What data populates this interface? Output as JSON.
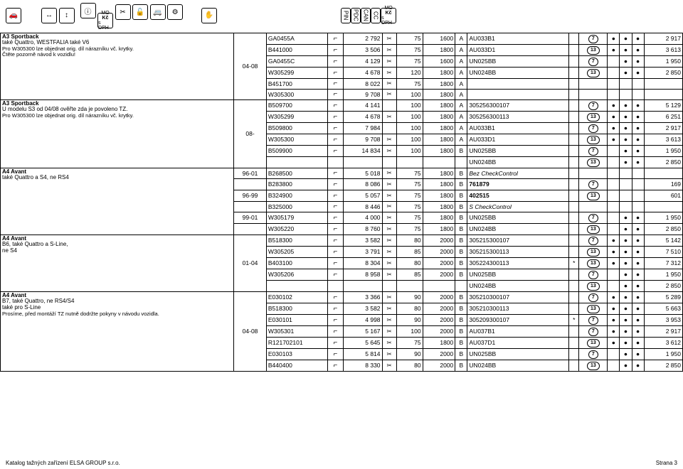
{
  "header_icons_left": [
    "🚗"
  ],
  "header_icons_g2": [
    "↔",
    "↕"
  ],
  "header_icons_g3": [
    "ⓘ",
    "Kč",
    "✂",
    "🔓",
    "🚐",
    "⚙"
  ],
  "header_icons_g4": [
    "✋"
  ],
  "header_icons_g5": [
    "PIN",
    "PDC",
    "CAN",
    "CC",
    "Kč"
  ],
  "groups": [
    {
      "descs": [
        {
          "text": "A3 Sportback",
          "bold": true
        },
        {
          "text": "také Quattro, WESTFALIA také V6"
        },
        {
          "text": "Pro W305300 lze objednat orig. díl nárazníku vč. krytky.",
          "small": true
        },
        {
          "text": "Čtěte pozorně návod k vozidlu!",
          "small": true
        }
      ],
      "years": "04-08",
      "rows": [
        {
          "code": "GA0455A",
          "sym": "⌐",
          "num": "2 792",
          "s2": "✂",
          "n2": "75",
          "n3": "1600",
          "ab": "A",
          "ref": "AU033B1",
          "star": "",
          "pin": "7",
          "d1": "●",
          "d2": "●",
          "d3": "●",
          "price": "2 917"
        },
        {
          "code": "B441000",
          "sym": "⌐",
          "num": "3 506",
          "s2": "✂",
          "n2": "75",
          "n3": "1800",
          "ab": "A",
          "ref": "AU033D1",
          "star": "",
          "pin": "13",
          "d1": "●",
          "d2": "●",
          "d3": "●",
          "price": "3 613"
        },
        {
          "code": "GA0455C",
          "sym": "⌐",
          "num": "4 129",
          "s2": "✂",
          "n2": "75",
          "n3": "1600",
          "ab": "A",
          "ref": "UN025BB",
          "star": "",
          "pin": "7",
          "d1": "",
          "d2": "●",
          "d3": "●",
          "price": "1 950"
        },
        {
          "code": "W305299",
          "sym": "⌐",
          "num": "4 678",
          "s2": "✂",
          "n2": "120",
          "n3": "1800",
          "ab": "A",
          "ref": "UN024BB",
          "star": "",
          "pin": "13",
          "d1": "",
          "d2": "●",
          "d3": "●",
          "price": "2 850"
        },
        {
          "code": "B451700",
          "sym": "⌐",
          "num": "8 022",
          "s2": "✂",
          "n2": "75",
          "n3": "1800",
          "ab": "A",
          "ref": "",
          "star": "",
          "pin": "",
          "d1": "",
          "d2": "",
          "d3": "",
          "price": ""
        },
        {
          "code": "W305300",
          "sym": "⌐",
          "num": "9 708",
          "s2": "✂",
          "n2": "100",
          "n3": "1800",
          "ab": "A",
          "ref": "",
          "star": "",
          "pin": "",
          "d1": "",
          "d2": "",
          "d3": "",
          "price": ""
        }
      ]
    },
    {
      "descs": [
        {
          "text": "A3 Sportback",
          "bold": true
        },
        {
          "text": "U modelu S3 od 04/08 ověřte zda je povoleno TZ."
        },
        {
          "text": "Pro W305300 lze objednat orig. díl nárazníku vč. krytky.",
          "small": true
        }
      ],
      "years": "08-",
      "rows": [
        {
          "code": "B509700",
          "sym": "⌐",
          "num": "4 141",
          "s2": "",
          "n2": "100",
          "n3": "1800",
          "ab": "A",
          "ref": "305256300107",
          "star": "",
          "pin": "7",
          "d1": "●",
          "d2": "●",
          "d3": "●",
          "price": "5 129"
        },
        {
          "code": "W305299",
          "sym": "⌐",
          "num": "4 678",
          "s2": "✂",
          "n2": "100",
          "n3": "1800",
          "ab": "A",
          "ref": "305256300113",
          "star": "",
          "pin": "13",
          "d1": "●",
          "d2": "●",
          "d3": "●",
          "price": "6 251"
        },
        {
          "code": "B509800",
          "sym": "⌐",
          "num": "7 984",
          "s2": "",
          "n2": "100",
          "n3": "1800",
          "ab": "A",
          "ref": "AU033B1",
          "star": "",
          "pin": "7",
          "d1": "●",
          "d2": "●",
          "d3": "●",
          "price": "2 917"
        },
        {
          "code": "W305300",
          "sym": "⌐",
          "num": "9 708",
          "s2": "✂",
          "n2": "100",
          "n3": "1800",
          "ab": "A",
          "ref": "AU033D1",
          "star": "",
          "pin": "13",
          "d1": "●",
          "d2": "●",
          "d3": "●",
          "price": "3 613"
        },
        {
          "code": "B509900",
          "sym": "⌐",
          "num": "14 834",
          "s2": "✂",
          "n2": "100",
          "n3": "1800",
          "ab": "B",
          "ref": "UN025BB",
          "star": "",
          "pin": "7",
          "d1": "",
          "d2": "●",
          "d3": "●",
          "price": "1 950"
        },
        {
          "code": "",
          "sym": "",
          "num": "",
          "s2": "",
          "n2": "",
          "n3": "",
          "ab": "",
          "ref": "UN024BB",
          "star": "",
          "pin": "13",
          "d1": "",
          "d2": "●",
          "d3": "●",
          "price": "2 850"
        }
      ]
    },
    {
      "descs": [
        {
          "text": "A4 Avant",
          "bold": true
        },
        {
          "text": "také Quattro a S4, ne RS4"
        }
      ],
      "years": "96-01",
      "year_overrides": {
        "2": "96-99",
        "4": "99-01"
      },
      "rows": [
        {
          "code": "B268500",
          "sym": "⌐",
          "num": "5 018",
          "s2": "✂",
          "n2": "75",
          "n3": "1800",
          "ab": "B",
          "ref": "Bez CheckControl",
          "refItalic": true,
          "star": "",
          "pin": "",
          "d1": "",
          "d2": "",
          "d3": "",
          "price": ""
        },
        {
          "code": "B283800",
          "sym": "⌐",
          "num": "8 086",
          "s2": "✂",
          "n2": "75",
          "n3": "1800",
          "ab": "B",
          "ref": "761879",
          "refBold": true,
          "star": "",
          "pin": "7",
          "d1": "",
          "d2": "",
          "d3": "",
          "price": "169"
        },
        {
          "code": "B324900",
          "sym": "⌐",
          "num": "5 057",
          "s2": "✂",
          "n2": "75",
          "n3": "1800",
          "ab": "B",
          "ref": "402515",
          "refBold": true,
          "star": "",
          "pin": "13",
          "d1": "",
          "d2": "",
          "d3": "",
          "price": "601"
        },
        {
          "code": "B325000",
          "sym": "⌐",
          "num": "8 446",
          "s2": "✂",
          "n2": "75",
          "n3": "1800",
          "ab": "B",
          "ref": "S CheckControl",
          "refItalic": true,
          "star": "",
          "pin": "",
          "d1": "",
          "d2": "",
          "d3": "",
          "price": ""
        },
        {
          "code": "W305179",
          "sym": "⌐",
          "num": "4 000",
          "s2": "✂",
          "n2": "75",
          "n3": "1800",
          "ab": "B",
          "ref": "UN025BB",
          "star": "",
          "pin": "7",
          "d1": "",
          "d2": "●",
          "d3": "●",
          "price": "1 950"
        },
        {
          "code": "W305220",
          "sym": "⌐",
          "num": "8 760",
          "s2": "✂",
          "n2": "75",
          "n3": "1800",
          "ab": "B",
          "ref": "UN024BB",
          "star": "",
          "pin": "13",
          "d1": "",
          "d2": "●",
          "d3": "●",
          "price": "2 850"
        }
      ]
    },
    {
      "descs": [
        {
          "text": "A4 Avant",
          "bold": true
        },
        {
          "text": "B6, také Quattro a S-Line,"
        },
        {
          "text": "ne S4"
        }
      ],
      "years": "01-04",
      "rows": [
        {
          "code": "B518300",
          "sym": "⌐",
          "num": "3 582",
          "s2": "✂",
          "n2": "80",
          "n3": "2000",
          "ab": "B",
          "ref": "305215300107",
          "star": "",
          "pin": "7",
          "d1": "●",
          "d2": "●",
          "d3": "●",
          "price": "5 142"
        },
        {
          "code": "W305205",
          "sym": "⌐",
          "num": "3 791",
          "s2": "✂",
          "n2": "85",
          "n3": "2000",
          "ab": "B",
          "ref": "305215300113",
          "star": "",
          "pin": "13",
          "d1": "●",
          "d2": "●",
          "d3": "●",
          "price": "7 510"
        },
        {
          "code": "B403100",
          "sym": "⌐",
          "num": "8 304",
          "s2": "✂",
          "n2": "80",
          "n3": "2000",
          "ab": "B",
          "ref": "305224300113",
          "star": "*",
          "pin": "13",
          "d1": "●",
          "d2": "●",
          "d3": "●",
          "price": "7 312"
        },
        {
          "code": "W305206",
          "sym": "⌐",
          "num": "8 958",
          "s2": "✂",
          "n2": "85",
          "n3": "2000",
          "ab": "B",
          "ref": "UN025BB",
          "star": "",
          "pin": "7",
          "d1": "",
          "d2": "●",
          "d3": "●",
          "price": "1 950"
        },
        {
          "code": "",
          "sym": "",
          "num": "",
          "s2": "",
          "n2": "",
          "n3": "",
          "ab": "",
          "ref": "UN024BB",
          "star": "",
          "pin": "13",
          "d1": "",
          "d2": "●",
          "d3": "●",
          "price": "2 850"
        }
      ]
    },
    {
      "descs": [
        {
          "text": "A4 Avant",
          "bold": true
        },
        {
          "text": "B7, také Quattro, ne RS4/S4"
        },
        {
          "text": "také pro S-Line"
        },
        {
          "text": "Prosíme, před montáží TZ nutně dodržte pokyny v návodu vozidla.",
          "small": true
        }
      ],
      "years": "04-08",
      "rows": [
        {
          "code": "E030102",
          "sym": "⌐",
          "num": "3 366",
          "s2": "✂",
          "n2": "90",
          "n3": "2000",
          "ab": "B",
          "ref": "305210300107",
          "star": "",
          "pin": "7",
          "d1": "●",
          "d2": "●",
          "d3": "●",
          "price": "5 289"
        },
        {
          "code": "B518300",
          "sym": "⌐",
          "num": "3 582",
          "s2": "✂",
          "n2": "80",
          "n3": "2000",
          "ab": "B",
          "ref": "305210300113",
          "star": "",
          "pin": "13",
          "d1": "●",
          "d2": "●",
          "d3": "●",
          "price": "5 663"
        },
        {
          "code": "E030101",
          "sym": "⌐",
          "num": "4 998",
          "s2": "✂",
          "n2": "90",
          "n3": "2000",
          "ab": "B",
          "ref": "305209300107",
          "star": "*",
          "pin": "7",
          "d1": "●",
          "d2": "●",
          "d3": "●",
          "price": "3 953"
        },
        {
          "code": "W305301",
          "sym": "⌐",
          "num": "5 167",
          "s2": "✂",
          "n2": "100",
          "n3": "2000",
          "ab": "B",
          "ref": "AU037B1",
          "star": "",
          "pin": "7",
          "d1": "●",
          "d2": "●",
          "d3": "●",
          "price": "2 917"
        },
        {
          "code": "R121702101",
          "sym": "⌐",
          "num": "5 645",
          "s2": "✂",
          "n2": "75",
          "n3": "1800",
          "ab": "B",
          "ref": "AU037D1",
          "star": "",
          "pin": "13",
          "d1": "●",
          "d2": "●",
          "d3": "●",
          "price": "3 612"
        },
        {
          "code": "E030103",
          "sym": "⌐",
          "num": "5 814",
          "s2": "✂",
          "n2": "90",
          "n3": "2000",
          "ab": "B",
          "ref": "UN025BB",
          "star": "",
          "pin": "7",
          "d1": "",
          "d2": "●",
          "d3": "●",
          "price": "1 950"
        },
        {
          "code": "B440400",
          "sym": "⌐",
          "num": "8 330",
          "s2": "✂",
          "n2": "80",
          "n3": "2000",
          "ab": "B",
          "ref": "UN024BB",
          "star": "",
          "pin": "13",
          "d1": "",
          "d2": "●",
          "d3": "●",
          "price": "2 850"
        }
      ]
    }
  ],
  "footer_left": "Katalog tažných zařízení ELSA GROUP s.r.o.",
  "footer_right": "Strana 3"
}
